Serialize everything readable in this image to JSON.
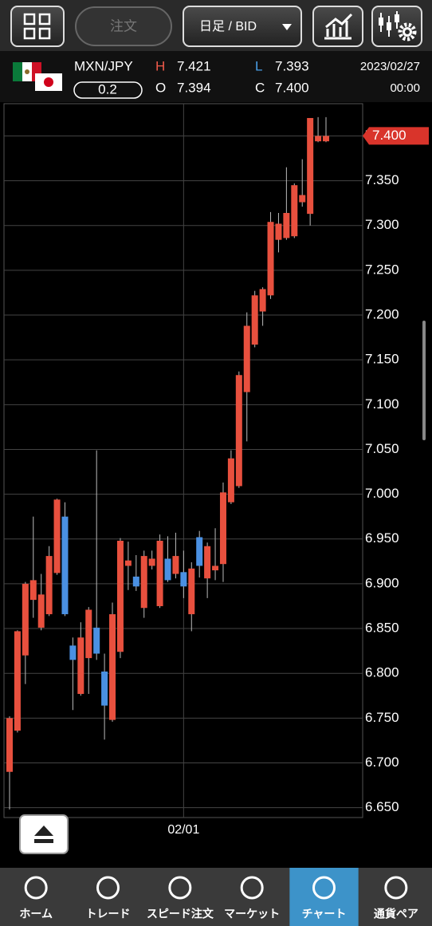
{
  "toolbar": {
    "order_button": "注文",
    "timeframe": "日足 / BID"
  },
  "info": {
    "pair": "MXN/JPY",
    "spread": "0.2",
    "high": {
      "label": "H",
      "value": "7.421"
    },
    "open": {
      "label": "O",
      "value": "7.394"
    },
    "low": {
      "label": "L",
      "value": "7.393"
    },
    "close": {
      "label": "C",
      "value": "7.400"
    },
    "date": "2023/02/27",
    "time": "00:00"
  },
  "chart_data": {
    "type": "candlestick",
    "categories": [
      null,
      null,
      null,
      null,
      null,
      null,
      null,
      null,
      null,
      null,
      null,
      null,
      null,
      null,
      null,
      null,
      null,
      null,
      null,
      null,
      null,
      null,
      "02/01",
      null,
      null,
      null,
      null,
      null,
      null,
      null,
      null,
      null,
      null,
      null,
      null,
      null,
      null,
      null,
      null,
      null,
      null
    ],
    "open": [
      6.69,
      6.736,
      6.82,
      6.882,
      6.851,
      6.866,
      6.912,
      6.975,
      6.831,
      6.777,
      6.817,
      6.851,
      6.802,
      6.748,
      6.824,
      6.92,
      6.908,
      6.873,
      6.92,
      6.875,
      6.928,
      6.911,
      6.913,
      6.866,
      6.952,
      6.906,
      6.915,
      6.922,
      6.991,
      7.009,
      7.114,
      7.167,
      7.204,
      7.222,
      7.284,
      7.286,
      7.288,
      7.326,
      7.313,
      7.394,
      7.394
    ],
    "close": [
      6.75,
      6.847,
      6.9,
      6.904,
      6.888,
      6.931,
      6.994,
      6.866,
      6.815,
      6.84,
      6.871,
      6.822,
      6.764,
      6.866,
      6.948,
      6.926,
      6.897,
      6.931,
      6.928,
      6.948,
      6.904,
      6.931,
      6.897,
      6.917,
      6.92,
      6.942,
      6.92,
      7.002,
      7.04,
      7.133,
      7.188,
      7.222,
      7.229,
      7.304,
      7.302,
      7.314,
      7.345,
      7.334,
      7.42,
      7.4,
      7.4
    ],
    "high": [
      6.752,
      6.848,
      6.902,
      6.975,
      6.911,
      6.942,
      6.995,
      6.991,
      6.84,
      6.857,
      6.874,
      7.049,
      6.822,
      6.879,
      6.951,
      6.947,
      6.932,
      6.937,
      6.937,
      6.955,
      6.953,
      6.957,
      6.937,
      6.924,
      6.959,
      6.946,
      6.962,
      7.013,
      7.049,
      7.137,
      7.203,
      7.227,
      7.231,
      7.315,
      7.314,
      7.365,
      7.347,
      7.374,
      7.42,
      7.421,
      7.421
    ],
    "low": [
      6.648,
      6.734,
      6.788,
      6.862,
      6.848,
      6.864,
      6.91,
      6.864,
      6.759,
      6.775,
      6.777,
      6.815,
      6.726,
      6.746,
      6.817,
      6.893,
      6.892,
      6.862,
      6.916,
      6.873,
      6.902,
      6.906,
      6.884,
      6.847,
      6.907,
      6.884,
      6.904,
      6.902,
      6.989,
      7.007,
      7.059,
      7.164,
      7.188,
      7.218,
      7.27,
      7.284,
      7.286,
      7.321,
      7.3,
      7.393,
      7.393
    ],
    "up_color": "#e8503e",
    "down_color": "#4a90e2",
    "ylim": [
      6.639,
      7.436
    ],
    "yticks": [
      {
        "value": 6.65,
        "label": "6.650"
      },
      {
        "value": 6.7,
        "label": "6.700"
      },
      {
        "value": 6.75,
        "label": "6.750"
      },
      {
        "value": 6.8,
        "label": "6.800"
      },
      {
        "value": 6.85,
        "label": "6.850"
      },
      {
        "value": 6.9,
        "label": "6.900"
      },
      {
        "value": 6.95,
        "label": "6.950"
      },
      {
        "value": 7.0,
        "label": "7.000"
      },
      {
        "value": 7.05,
        "label": "7.050"
      },
      {
        "value": 7.1,
        "label": "7.100"
      },
      {
        "value": 7.15,
        "label": "7.150"
      },
      {
        "value": 7.2,
        "label": "7.200"
      },
      {
        "value": 7.25,
        "label": "7.250"
      },
      {
        "value": 7.3,
        "label": "7.300"
      },
      {
        "value": 7.35,
        "label": "7.350"
      },
      {
        "value": 7.4,
        "label": "7.400"
      }
    ],
    "grid": true
  },
  "nav": [
    "ホーム",
    "トレード",
    "スピード注文",
    "マーケット",
    "チャート",
    "通貨ペア"
  ],
  "active_tab": 4
}
